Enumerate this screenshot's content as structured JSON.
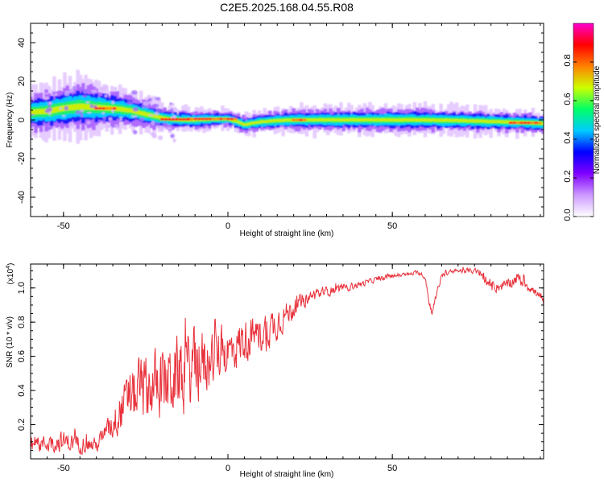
{
  "figure_title": "C2E5.2025.168.04.55.R08",
  "chart_data": [
    {
      "type": "heatmap",
      "title": "",
      "xlabel": "Height of straight line (km)",
      "ylabel": "Frequency (Hz)",
      "xlim": [
        -60,
        96
      ],
      "ylim": [
        -50,
        50
      ],
      "xticks": [
        -50,
        0,
        50
      ],
      "yticks": [
        -40,
        -20,
        0,
        20,
        40
      ],
      "colorbar": {
        "label": "Normalized spectral amplitude",
        "range": [
          0,
          1
        ],
        "ticks": [
          "0.0",
          "0.2",
          "0.4",
          "0.6",
          "0.8"
        ],
        "tick_values": [
          0.0,
          0.2,
          0.4,
          0.6,
          0.8
        ],
        "colors": [
          "#ffffff",
          "#cc99ff",
          "#8000ff",
          "#0000ff",
          "#00ccff",
          "#00ff66",
          "#ccff00",
          "#ff8000",
          "#ff0000",
          "#ff00cc"
        ]
      },
      "ridge_center_hz": {
        "x": [
          -60,
          -55,
          -50,
          -45,
          -40,
          -35,
          -30,
          -25,
          -20,
          -15,
          -10,
          -5,
          0,
          3,
          5,
          8,
          10,
          15,
          20,
          30,
          40,
          50,
          60,
          70,
          80,
          90,
          96
        ],
        "y": [
          4,
          4.5,
          6,
          7,
          6.5,
          6,
          5,
          3,
          1,
          0,
          0,
          0.3,
          0.5,
          -1,
          -2.5,
          -1.5,
          -1,
          -0.3,
          0,
          0,
          0,
          0,
          0,
          -0.3,
          -0.8,
          -1.3,
          -1.8
        ]
      },
      "ridge_halfwidth_hz": {
        "x": [
          -60,
          -45,
          -30,
          -15,
          0,
          15,
          50,
          96
        ],
        "y": [
          5,
          6,
          4,
          2.5,
          2,
          2.5,
          3,
          2.5
        ]
      },
      "red_core_segments": [
        {
          "from": -40,
          "to": -34,
          "y": 6
        },
        {
          "from": -20,
          "to": -11,
          "y": 0.3
        },
        {
          "from": -12,
          "to": 3,
          "y": 0.5
        },
        {
          "from": 20,
          "to": 24,
          "y": 0
        },
        {
          "from": 86,
          "to": 95,
          "y": -1.5
        }
      ]
    },
    {
      "type": "line",
      "title": "",
      "xlabel": "Height of straight line (km)",
      "ylabel": "SNR (10 * v/v)",
      "yscale_label": "(x10",
      "yscale_exp": "4",
      "yscale_close": ")",
      "xlim": [
        -60,
        96
      ],
      "ylim": [
        0,
        1.14
      ],
      "xticks": [
        -50,
        0,
        50
      ],
      "yticks": [
        "0.2",
        "0.4",
        "0.6",
        "0.8",
        "1.0"
      ],
      "ytick_values": [
        0.2,
        0.4,
        0.6,
        0.8,
        1.0
      ],
      "line_color": "#e8323c",
      "envelope": {
        "x": [
          -60,
          -50,
          -45,
          -40,
          -36,
          -32,
          -28,
          -24,
          -20,
          -16,
          -12,
          -8,
          -4,
          0,
          4,
          8,
          12,
          16,
          20,
          25,
          30,
          35,
          40,
          45,
          50,
          55,
          58,
          60,
          61,
          62,
          65,
          70,
          75,
          78,
          80,
          85,
          88,
          92,
          95,
          96
        ],
        "mean": [
          0.08,
          0.1,
          0.09,
          0.08,
          0.18,
          0.3,
          0.38,
          0.42,
          0.45,
          0.48,
          0.52,
          0.55,
          0.6,
          0.62,
          0.68,
          0.72,
          0.75,
          0.82,
          0.88,
          0.95,
          0.98,
          1.0,
          1.02,
          1.05,
          1.07,
          1.08,
          1.09,
          1.06,
          0.92,
          0.86,
          1.08,
          1.1,
          1.1,
          1.06,
          1.0,
          1.02,
          1.06,
          1.0,
          0.94,
          0.9
        ],
        "spread": [
          0.06,
          0.08,
          0.07,
          0.06,
          0.1,
          0.18,
          0.24,
          0.26,
          0.28,
          0.3,
          0.3,
          0.28,
          0.22,
          0.2,
          0.18,
          0.14,
          0.16,
          0.12,
          0.08,
          0.05,
          0.04,
          0.03,
          0.025,
          0.02,
          0.02,
          0.015,
          0.015,
          0.02,
          0.03,
          0.03,
          0.02,
          0.02,
          0.02,
          0.04,
          0.04,
          0.04,
          0.05,
          0.04,
          0.04,
          0.04
        ]
      }
    }
  ]
}
